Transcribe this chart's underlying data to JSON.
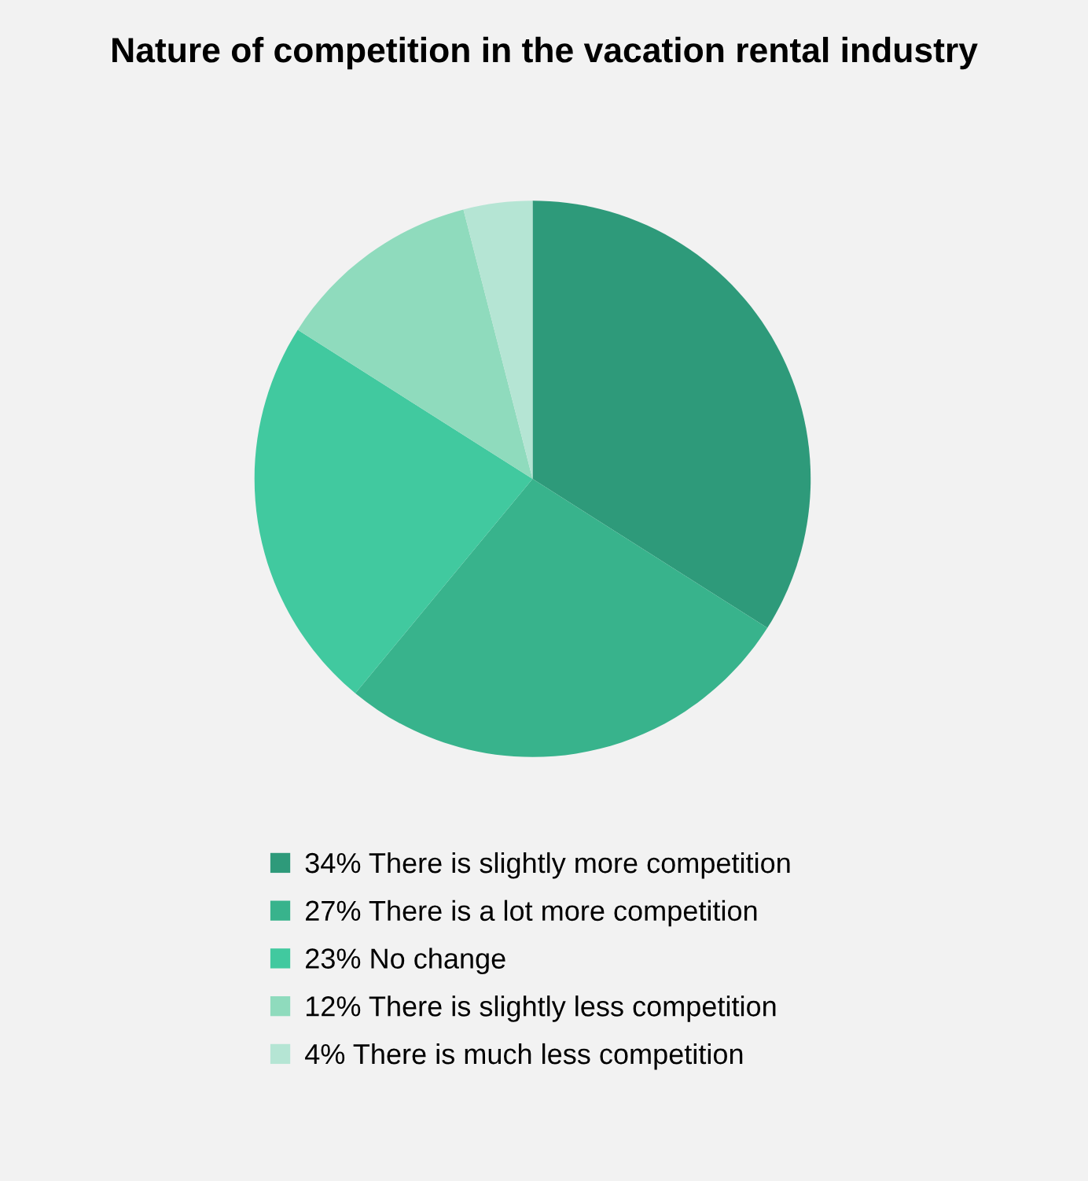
{
  "chart_data": {
    "type": "pie",
    "title": "Nature of competition in the vacation rental industry",
    "categories": [
      "34% There is slightly more competition",
      "27% There is a lot more competition",
      "23% No change",
      "12% There is slightly less competition",
      "4% There is much less competition"
    ],
    "values": [
      34,
      27,
      23,
      12,
      4
    ],
    "colors": [
      "#2e9a7a",
      "#38b38c",
      "#41c99f",
      "#8fdbbd",
      "#b5e5d4"
    ],
    "legend": "bottom"
  }
}
